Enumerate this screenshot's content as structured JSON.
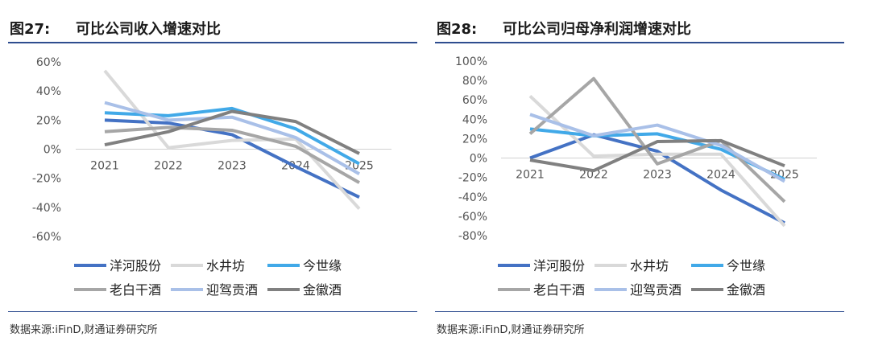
{
  "charts": [
    {
      "figure_label": "图27:",
      "title": "可比公司收入增速对比",
      "source": "数据来源:iFinD,财通证券研究所"
    },
    {
      "figure_label": "图28:",
      "title": "可比公司归母净利润增速对比",
      "source": "数据来源:iFinD,财通证券研究所"
    }
  ],
  "colors": {
    "洋河股份": "#4472c4",
    "水井坊": "#d9d9d9",
    "今世缘": "#41a9e8",
    "老白干酒": "#a6a6a6",
    "迎驾贡酒": "#a9c0e8",
    "金徽酒": "#808080",
    "rule": "#2e4d8f"
  },
  "chart_data": [
    {
      "type": "line",
      "x": [
        "2021",
        "2022",
        "2023",
        "2024",
        "2025"
      ],
      "ylim": [
        -60,
        60
      ],
      "yticks": [
        60,
        40,
        20,
        0,
        -20,
        -40,
        -60
      ],
      "ytick_labels": [
        "60%",
        "40%",
        "20%",
        "0%",
        "-20%",
        "-40%",
        "-60%"
      ],
      "legend": "bottom",
      "grid": false,
      "series": [
        {
          "name": "洋河股份",
          "values": [
            20,
            18,
            10,
            -12,
            -33
          ]
        },
        {
          "name": "水井坊",
          "values": [
            54,
            1,
            6,
            7,
            -41
          ]
        },
        {
          "name": "今世缘",
          "values": [
            25,
            23,
            28,
            14,
            -10
          ]
        },
        {
          "name": "老白干酒",
          "values": [
            12,
            15,
            13,
            2,
            -23
          ]
        },
        {
          "name": "迎驾贡酒",
          "values": [
            32,
            20,
            22,
            8,
            -17
          ]
        },
        {
          "name": "金徽酒",
          "values": [
            3,
            12,
            26,
            19,
            -3
          ]
        }
      ]
    },
    {
      "type": "line",
      "x": [
        "2021",
        "2022",
        "2023",
        "2024",
        "2025"
      ],
      "ylim": [
        -80,
        100
      ],
      "yticks": [
        100,
        80,
        60,
        40,
        20,
        0,
        -20,
        -40,
        -60,
        -80
      ],
      "ytick_labels": [
        "100%",
        "80%",
        "60%",
        "40%",
        "20%",
        "0%",
        "-20%",
        "-40%",
        "-60%",
        "-80%"
      ],
      "legend": "bottom",
      "grid": false,
      "series": [
        {
          "name": "洋河股份",
          "values": [
            0,
            24,
            7,
            -33,
            -67
          ]
        },
        {
          "name": "水井坊",
          "values": [
            64,
            2,
            4,
            4,
            -70
          ]
        },
        {
          "name": "今世缘",
          "values": [
            30,
            23,
            25,
            9,
            -22
          ]
        },
        {
          "name": "老白干酒",
          "values": [
            25,
            82,
            -6,
            18,
            -45
          ]
        },
        {
          "name": "迎驾贡酒",
          "values": [
            45,
            23,
            34,
            13,
            -24
          ]
        },
        {
          "name": "金徽酒",
          "values": [
            -2,
            -13,
            17,
            18,
            -8
          ]
        }
      ]
    }
  ]
}
